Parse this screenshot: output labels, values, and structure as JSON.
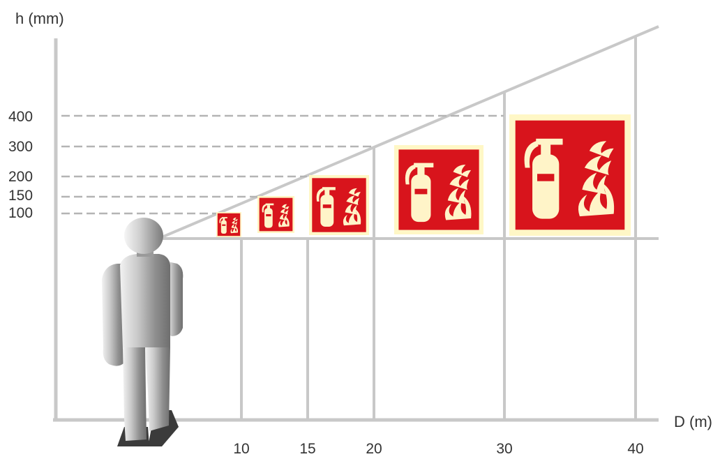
{
  "axes": {
    "y_label": "h (mm)",
    "x_label": "D (m)"
  },
  "chart_data": {
    "type": "other",
    "y_ticks": [
      100,
      150,
      200,
      300,
      400
    ],
    "x_ticks": [
      10,
      15,
      20,
      30,
      40
    ],
    "signs": [
      {
        "distance_m": 10,
        "height_mm": 100
      },
      {
        "distance_m": 15,
        "height_mm": 150
      },
      {
        "distance_m": 20,
        "height_mm": 200
      },
      {
        "distance_m": 30,
        "height_mm": 300
      },
      {
        "distance_m": 40,
        "height_mm": 400
      }
    ]
  },
  "colors": {
    "axis": "#c8c8c8",
    "dash": "#b4b4b4",
    "sign_red": "#d8141c",
    "sign_border": "#fff7c6",
    "sign_symbol": "#fff4c8",
    "person": "#8a8a8a",
    "text": "#333333"
  },
  "icons": {
    "sign": "fire-extinguisher-sign-icon",
    "person": "person-figure-icon"
  }
}
